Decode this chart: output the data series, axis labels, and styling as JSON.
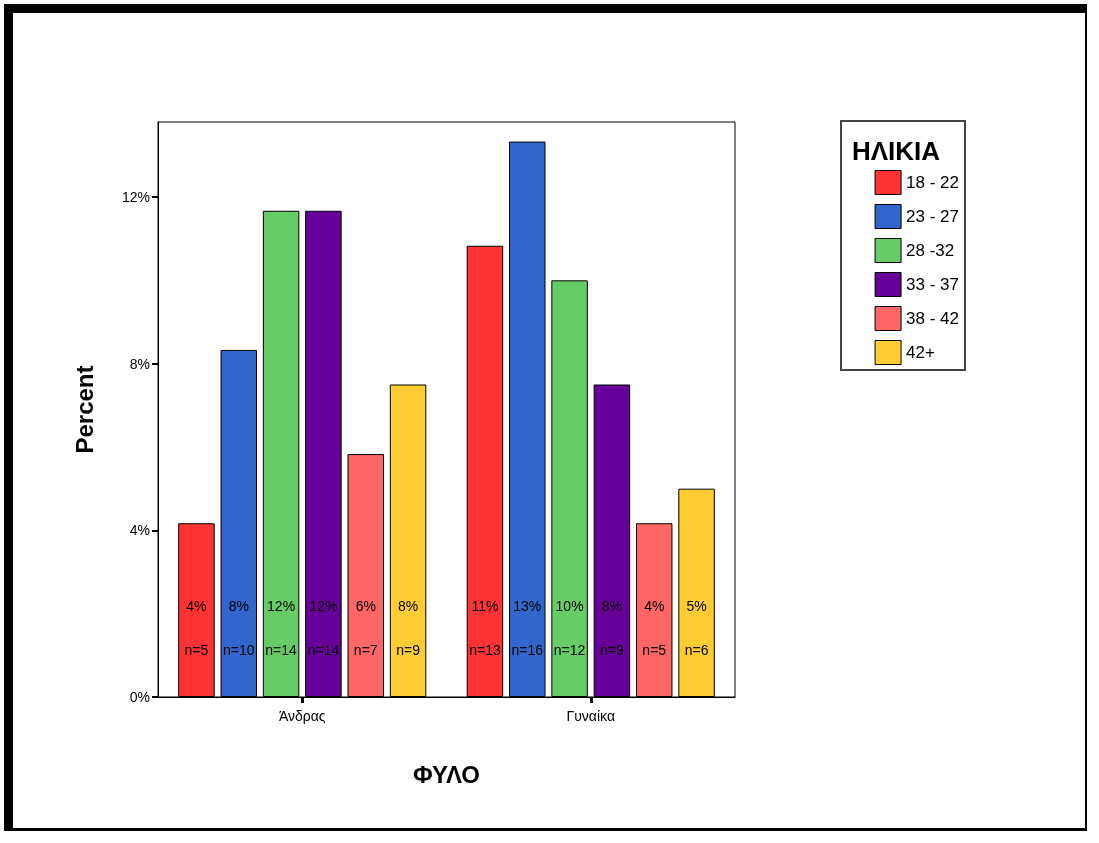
{
  "chart_data": {
    "type": "bar",
    "xlabel": "ΦΥΛΟ",
    "ylabel": "Percent",
    "legend_title": "ΗΛΙΚΙΑ",
    "categories": [
      "Άνδρας",
      "Γυναίκα"
    ],
    "series": [
      {
        "name": "18 - 22",
        "color": "#ff3333",
        "values": [
          4.17,
          10.83
        ],
        "value_labels": [
          "4%\nn=5",
          "11%\nn=13"
        ]
      },
      {
        "name": "23 - 27",
        "color": "#3366cc",
        "values": [
          8.33,
          13.33
        ],
        "value_labels": [
          "8%\nn=10",
          "13%\nn=16"
        ]
      },
      {
        "name": "28 -32",
        "color": "#66cc66",
        "values": [
          11.67,
          10.0
        ],
        "value_labels": [
          "12%\nn=14",
          "10%\nn=12"
        ]
      },
      {
        "name": "33 - 37",
        "color": "#660099",
        "values": [
          11.67,
          7.5
        ],
        "value_labels": [
          "12%\nn=14",
          "8%\nn=9"
        ]
      },
      {
        "name": "38 - 42",
        "color": "#ff6666",
        "values": [
          5.83,
          4.17
        ],
        "value_labels": [
          "6%\nn=7",
          "4%\nn=5"
        ]
      },
      {
        "name": "42+",
        "color": "#ffcc33",
        "values": [
          7.5,
          5.0
        ],
        "value_labels": [
          "8%\nn=9",
          "5%\nn=6"
        ]
      }
    ],
    "ylim": [
      0,
      13.8
    ],
    "yticks": [
      {
        "value": 0,
        "label": "0%"
      },
      {
        "value": 4,
        "label": "4%"
      },
      {
        "value": 8,
        "label": "8%"
      },
      {
        "value": 12,
        "label": "12%"
      }
    ],
    "grid": false,
    "legend": "right"
  }
}
